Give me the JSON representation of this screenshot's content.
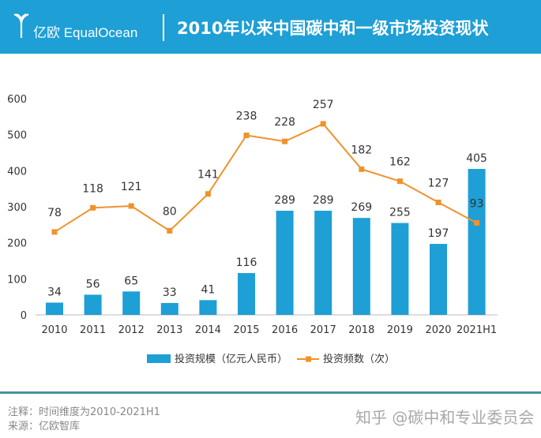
{
  "header": {
    "logo": "亿欧 EqualOcean",
    "title": "2010年以来中国碳中和一级市场投资现状"
  },
  "colors": {
    "header": "#1e9fd6",
    "bar": "#1e9fd6",
    "line": "#f0922b"
  },
  "chart_data": {
    "type": "bar+line",
    "categories": [
      "2010",
      "2011",
      "2012",
      "2013",
      "2014",
      "2015",
      "2016",
      "2017",
      "2018",
      "2019",
      "2020",
      "2021H1"
    ],
    "ylim": [
      0,
      600
    ],
    "yticks": [
      "0",
      "100",
      "200",
      "300",
      "400",
      "500",
      "600"
    ],
    "grid": false,
    "legend_position": "bottom",
    "series": [
      {
        "name": "投资规模（亿元人民币）",
        "type": "bar",
        "values": [
          34,
          56,
          65,
          33,
          41,
          116,
          289,
          289,
          269,
          255,
          197,
          405
        ]
      },
      {
        "name": "投资频数（次）",
        "type": "line",
        "axis": "secondary-hidden",
        "values": [
          78,
          118,
          121,
          80,
          141,
          238,
          228,
          257,
          182,
          162,
          127,
          93
        ]
      }
    ]
  },
  "footer": {
    "note": "注释：时间维度为2010-2021H1",
    "source": "来源：亿欧智库",
    "watermark": "知乎 @碳中和专业委员会"
  }
}
